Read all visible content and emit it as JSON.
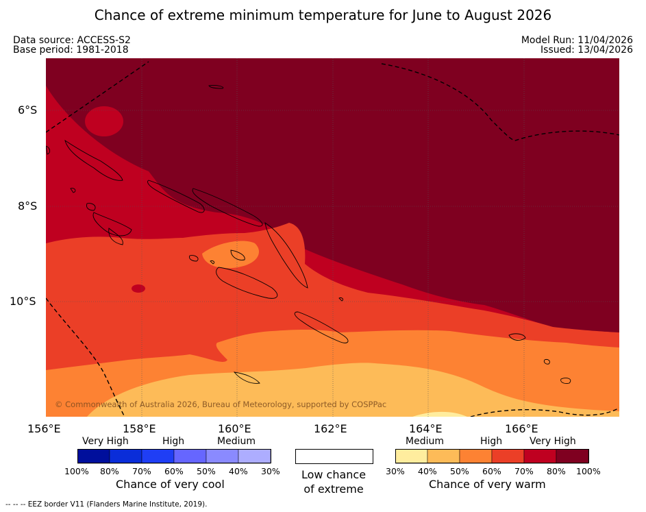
{
  "title": "Chance of extreme minimum temperature for June to August 2026",
  "meta": {
    "data_source": "Data source: ACCESS-S2",
    "base_period": "Base period: 1981-2018",
    "model_run": "Model Run: 11/04/2026",
    "issued": "Issued: 13/04/2026"
  },
  "map": {
    "lat_labels": [
      "6°S",
      "8°S",
      "10°S"
    ],
    "lon_labels": [
      "156°E",
      "158°E",
      "160°E",
      "162°E",
      "164°E",
      "166°E"
    ],
    "copyright": "© Commonwealth of Australia 2026, Bureau of Meteorology, supported by COSPPac"
  },
  "legend": {
    "cool": {
      "categories": [
        "Very High",
        "High",
        "Medium"
      ],
      "ticks": [
        "100%",
        "80%",
        "70%",
        "60%",
        "50%",
        "40%",
        "30%"
      ],
      "colors": [
        "#000f9c",
        "#0a2dd9",
        "#1f3ef5",
        "#6666ff",
        "#8a8aff",
        "#adadff"
      ],
      "title": "Chance of very cool"
    },
    "neutral": {
      "color": "#ffffff",
      "title_line1": "Low chance",
      "title_line2": "of extreme"
    },
    "warm": {
      "categories": [
        "Medium",
        "High",
        "Very High"
      ],
      "ticks": [
        "30%",
        "40%",
        "50%",
        "60%",
        "70%",
        "80%",
        "100%"
      ],
      "colors": [
        "#ffed9e",
        "#fdbb58",
        "#fd8233",
        "#eb3f27",
        "#bf0020",
        "#7f0020"
      ],
      "title": "Chance of very warm"
    }
  },
  "footnote": "--  --  -- EEZ border V11 (Flanders Marine Institute, 2019)."
}
